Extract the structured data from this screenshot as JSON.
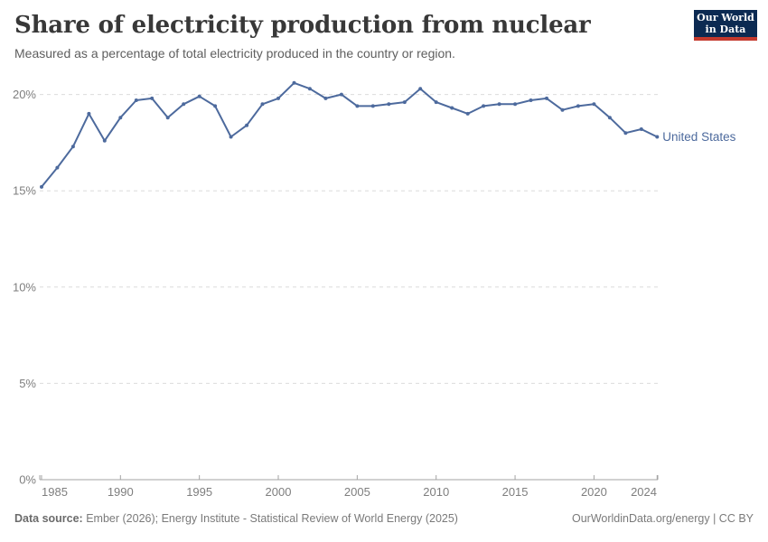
{
  "header": {
    "title": "Share of electricity production from nuclear",
    "subtitle": "Measured as a percentage of total electricity produced in the country or region."
  },
  "logo": {
    "line1": "Our World",
    "line2": "in Data"
  },
  "footer": {
    "source_label": "Data source:",
    "source_text": " Ember (2026); Energy Institute - Statistical Review of World Energy (2025)",
    "rights_text": "OurWorldinData.org/energy | CC BY"
  },
  "colors": {
    "series": "#4D6A9D",
    "grid": "#DBDBDB",
    "axis": "#A3A3A3",
    "tick_label": "#7E7E7E",
    "title": "#383838",
    "subtitle": "#5E5E5E",
    "logo_bg": "#0C2A52",
    "logo_stripe": "#C4392D"
  },
  "chart_data": {
    "type": "line",
    "title": "Share of electricity production from nuclear",
    "subtitle": "Measured as a percentage of total electricity produced in the country or region.",
    "xlabel": "",
    "ylabel": "",
    "xlim": [
      1985,
      2024
    ],
    "ylim": [
      0,
      21.2
    ],
    "x_ticks": [
      1985,
      1990,
      1995,
      2000,
      2005,
      2010,
      2015,
      2020,
      2024
    ],
    "y_ticks": [
      0,
      5,
      10,
      15,
      20
    ],
    "y_tick_suffix": "%",
    "grid": "horizontal-dashed",
    "legend": "end-of-line-label",
    "series": [
      {
        "name": "United States",
        "color": "#4D6A9D",
        "x": [
          1985,
          1986,
          1987,
          1988,
          1989,
          1990,
          1991,
          1992,
          1993,
          1994,
          1995,
          1996,
          1997,
          1998,
          1999,
          2000,
          2001,
          2002,
          2003,
          2004,
          2005,
          2006,
          2007,
          2008,
          2009,
          2010,
          2011,
          2012,
          2013,
          2014,
          2015,
          2016,
          2017,
          2018,
          2019,
          2020,
          2021,
          2022,
          2023,
          2024
        ],
        "values": [
          15.2,
          16.2,
          17.3,
          19.0,
          17.6,
          18.8,
          19.7,
          19.8,
          18.8,
          19.5,
          19.9,
          19.4,
          17.8,
          18.4,
          19.5,
          19.8,
          20.6,
          20.3,
          19.8,
          20.0,
          19.4,
          19.4,
          19.5,
          19.6,
          20.3,
          19.6,
          19.3,
          19.0,
          19.4,
          19.5,
          19.5,
          19.7,
          19.8,
          19.2,
          19.4,
          19.5,
          18.8,
          18.0,
          18.2,
          17.8
        ]
      }
    ]
  }
}
